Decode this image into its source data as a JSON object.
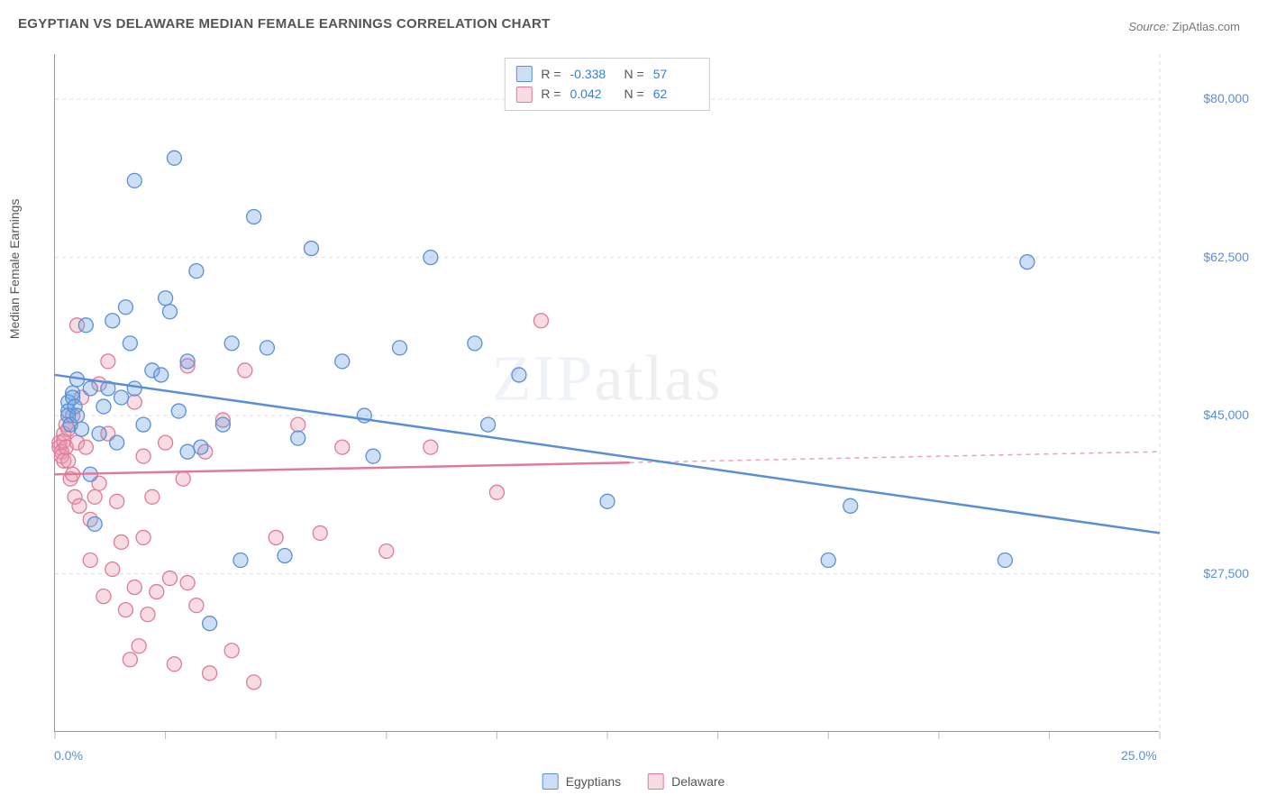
{
  "title": "EGYPTIAN VS DELAWARE MEDIAN FEMALE EARNINGS CORRELATION CHART",
  "source_label": "Source:",
  "source_value": "ZipAtlas.com",
  "y_axis_label": "Median Female Earnings",
  "watermark_zip": "ZIP",
  "watermark_atlas": "atlas",
  "chart": {
    "type": "scatter",
    "background_color": "#ffffff",
    "grid_color": "#dddddd",
    "grid_dash": "4,4",
    "axis_color": "#999999",
    "tick_color": "#bbbbbb",
    "ylabel_color": "#5a8fd6",
    "xlim": [
      0,
      25
    ],
    "ylim": [
      10000,
      85000
    ],
    "y_ticks": [
      27500,
      45000,
      62500,
      80000
    ],
    "y_tick_labels": [
      "$27,500",
      "$45,000",
      "$62,500",
      "$80,000"
    ],
    "x_ticks": [
      0,
      2.5,
      5,
      7.5,
      10,
      12.5,
      15,
      17.5,
      20,
      22.5,
      25
    ],
    "x_tick_labels_shown": {
      "0": "0.0%",
      "25": "25.0%"
    },
    "marker_radius": 8,
    "marker_fill_opacity": 0.35,
    "marker_stroke_width": 1.3,
    "trend_line_width": 2.5,
    "label_fontsize": 14,
    "title_fontsize": 15,
    "series": {
      "egyptians": {
        "label": "Egyptians",
        "color": "#6da3e0",
        "fill": "rgba(109,163,224,0.35)",
        "stroke": "#5a8fd6",
        "R": "-0.338",
        "N": "57",
        "trend": {
          "x0": 0,
          "y0": 49500,
          "x1": 25,
          "y1": 32000,
          "solid_until": 25
        },
        "points": [
          [
            0.3,
            46500
          ],
          [
            0.3,
            45500
          ],
          [
            0.3,
            45000
          ],
          [
            0.35,
            44000
          ],
          [
            0.4,
            47500
          ],
          [
            0.4,
            47000
          ],
          [
            0.45,
            46000
          ],
          [
            0.5,
            45000
          ],
          [
            0.5,
            49000
          ],
          [
            0.6,
            43500
          ],
          [
            0.7,
            55000
          ],
          [
            0.8,
            48000
          ],
          [
            0.8,
            38500
          ],
          [
            0.9,
            33000
          ],
          [
            1.0,
            43000
          ],
          [
            1.1,
            46000
          ],
          [
            1.2,
            48000
          ],
          [
            1.3,
            55500
          ],
          [
            1.4,
            42000
          ],
          [
            1.5,
            47000
          ],
          [
            1.6,
            57000
          ],
          [
            1.7,
            53000
          ],
          [
            1.8,
            71000
          ],
          [
            1.8,
            48000
          ],
          [
            2.0,
            44000
          ],
          [
            2.2,
            50000
          ],
          [
            2.4,
            49500
          ],
          [
            2.5,
            58000
          ],
          [
            2.6,
            56500
          ],
          [
            2.7,
            73500
          ],
          [
            2.8,
            45500
          ],
          [
            3.0,
            41000
          ],
          [
            3.0,
            51000
          ],
          [
            3.2,
            61000
          ],
          [
            3.3,
            41500
          ],
          [
            3.5,
            22000
          ],
          [
            3.8,
            44000
          ],
          [
            4.0,
            53000
          ],
          [
            4.2,
            29000
          ],
          [
            4.5,
            67000
          ],
          [
            4.8,
            52500
          ],
          [
            5.2,
            29500
          ],
          [
            5.5,
            42500
          ],
          [
            5.8,
            63500
          ],
          [
            6.5,
            51000
          ],
          [
            7.0,
            45000
          ],
          [
            7.2,
            40500
          ],
          [
            7.8,
            52500
          ],
          [
            8.5,
            62500
          ],
          [
            9.5,
            53000
          ],
          [
            9.8,
            44000
          ],
          [
            10.5,
            49500
          ],
          [
            12.5,
            35500
          ],
          [
            17.5,
            29000
          ],
          [
            18.0,
            35000
          ],
          [
            21.5,
            29000
          ],
          [
            22.0,
            62000
          ]
        ]
      },
      "delaware": {
        "label": "Delaware",
        "color": "#e89bb0",
        "fill": "rgba(232,155,176,0.35)",
        "stroke": "#e07a98",
        "R": "0.042",
        "N": "62",
        "trend": {
          "x0": 0,
          "y0": 38500,
          "x1": 25,
          "y1": 41000,
          "solid_until": 13
        },
        "points": [
          [
            0.1,
            42000
          ],
          [
            0.1,
            41500
          ],
          [
            0.15,
            41000
          ],
          [
            0.15,
            40500
          ],
          [
            0.2,
            43000
          ],
          [
            0.2,
            42200
          ],
          [
            0.2,
            40000
          ],
          [
            0.25,
            44000
          ],
          [
            0.25,
            41500
          ],
          [
            0.3,
            43500
          ],
          [
            0.3,
            40000
          ],
          [
            0.35,
            38000
          ],
          [
            0.4,
            45000
          ],
          [
            0.4,
            38500
          ],
          [
            0.45,
            36000
          ],
          [
            0.5,
            55000
          ],
          [
            0.5,
            42000
          ],
          [
            0.55,
            35000
          ],
          [
            0.6,
            47000
          ],
          [
            0.7,
            41500
          ],
          [
            0.8,
            29000
          ],
          [
            0.8,
            33500
          ],
          [
            0.9,
            36000
          ],
          [
            1.0,
            48500
          ],
          [
            1.0,
            37500
          ],
          [
            1.1,
            25000
          ],
          [
            1.2,
            51000
          ],
          [
            1.2,
            43000
          ],
          [
            1.3,
            28000
          ],
          [
            1.4,
            35500
          ],
          [
            1.5,
            31000
          ],
          [
            1.6,
            23500
          ],
          [
            1.7,
            18000
          ],
          [
            1.8,
            46500
          ],
          [
            1.8,
            26000
          ],
          [
            1.9,
            19500
          ],
          [
            2.0,
            40500
          ],
          [
            2.0,
            31500
          ],
          [
            2.1,
            23000
          ],
          [
            2.2,
            36000
          ],
          [
            2.3,
            25500
          ],
          [
            2.5,
            42000
          ],
          [
            2.6,
            27000
          ],
          [
            2.7,
            17500
          ],
          [
            2.9,
            38000
          ],
          [
            3.0,
            26500
          ],
          [
            3.0,
            50500
          ],
          [
            3.2,
            24000
          ],
          [
            3.4,
            41000
          ],
          [
            3.5,
            16500
          ],
          [
            3.8,
            44500
          ],
          [
            4.0,
            19000
          ],
          [
            4.3,
            50000
          ],
          [
            4.5,
            15500
          ],
          [
            5.0,
            31500
          ],
          [
            5.5,
            44000
          ],
          [
            6.0,
            32000
          ],
          [
            6.5,
            41500
          ],
          [
            7.5,
            30000
          ],
          [
            8.5,
            41500
          ],
          [
            10.0,
            36500
          ],
          [
            11.0,
            55500
          ]
        ]
      }
    }
  },
  "legend_top": {
    "R_label": "R =",
    "N_label": "N ="
  }
}
